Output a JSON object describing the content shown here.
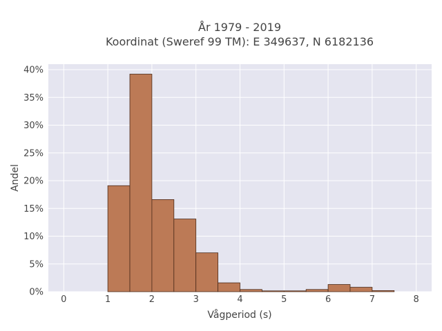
{
  "chart_data": {
    "type": "bar",
    "title_lines": [
      "År 1979 - 2019",
      "Koordinat (Sweref 99 TM): E 349637, N 6182136"
    ],
    "xlabel": "Vågperiod (s)",
    "ylabel": "Andel",
    "xlim": [
      -0.35,
      8.35
    ],
    "ylim": [
      0,
      41
    ],
    "x_ticks": [
      0,
      1,
      2,
      3,
      4,
      5,
      6,
      7,
      8
    ],
    "y_ticks": [
      0,
      5,
      10,
      15,
      20,
      25,
      30,
      35,
      40
    ],
    "y_tick_suffix": "%",
    "bin_width": 0.5,
    "bins": [
      {
        "x0": 1.0,
        "value": 19.1
      },
      {
        "x0": 1.5,
        "value": 39.2
      },
      {
        "x0": 2.0,
        "value": 16.6
      },
      {
        "x0": 2.5,
        "value": 13.1
      },
      {
        "x0": 3.0,
        "value": 7.0
      },
      {
        "x0": 3.5,
        "value": 1.6
      },
      {
        "x0": 4.0,
        "value": 0.4
      },
      {
        "x0": 4.5,
        "value": 0.15
      },
      {
        "x0": 5.0,
        "value": 0.15
      },
      {
        "x0": 5.5,
        "value": 0.4
      },
      {
        "x0": 6.0,
        "value": 1.3
      },
      {
        "x0": 6.5,
        "value": 0.8
      },
      {
        "x0": 7.0,
        "value": 0.2
      }
    ],
    "grid": true,
    "colors": {
      "bar_fill": "#bc7a56",
      "bar_stroke": "#4a2a1a",
      "plot_bg": "#e5e5f0",
      "grid": "#ffffff"
    }
  }
}
